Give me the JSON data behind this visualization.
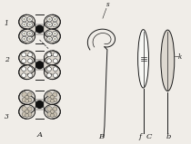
{
  "bg_color": "#f0ede8",
  "line_color": "#1a1a1a",
  "fill_lobe": "#ddd8d0",
  "fill_white": "#f8f8f5",
  "fill_nucleus": "#aaa89a",
  "fill_pollen": "#c8c0b0",
  "title_A": "A",
  "title_B": "B",
  "title_C": "C",
  "label_1": "1",
  "label_2": "2",
  "label_3": "3",
  "label_k": "k",
  "label_s": "s",
  "label_f": "f",
  "label_b": "b",
  "fig_width": 2.1,
  "fig_height": 1.59,
  "dpi": 100
}
